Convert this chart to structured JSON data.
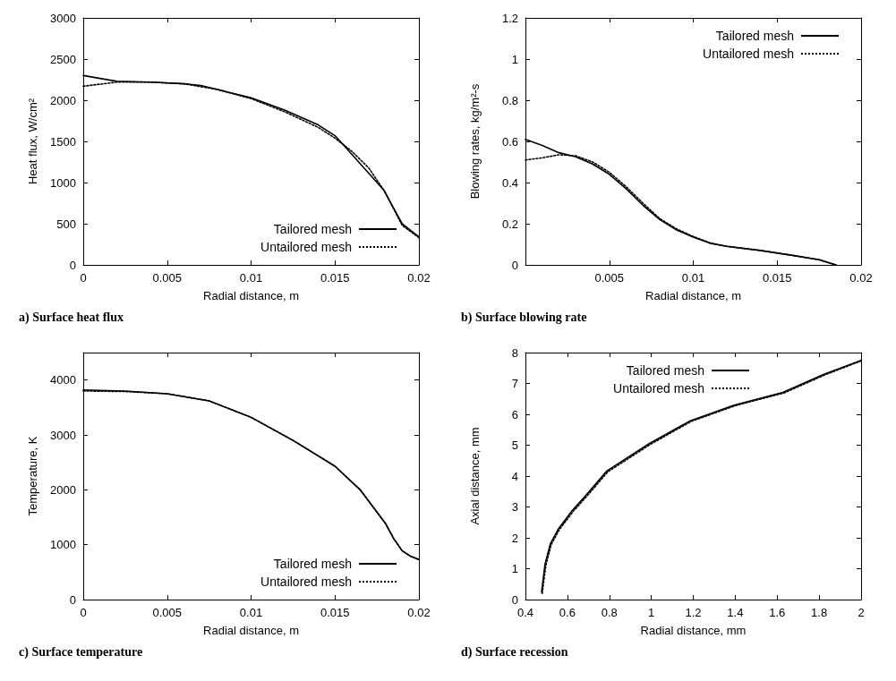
{
  "chart_data": [
    {
      "type": "line",
      "title": "a) Surface heat flux",
      "xlabel": "Radial distance, m",
      "ylabel": "Heat flux, W/cm²",
      "xlim": [
        0,
        0.02
      ],
      "xticks": [
        0,
        0.005,
        0.01,
        0.015,
        0.02
      ],
      "ylim": [
        0,
        3000
      ],
      "yticks": [
        0,
        500,
        1000,
        1500,
        2000,
        2500,
        3000
      ],
      "grid": false,
      "legend": "bottom right",
      "series": [
        {
          "name": "Tailored mesh",
          "color": "#000000",
          "line_style": "solid",
          "x": [
            0,
            0.002,
            0.004,
            0.006,
            0.007,
            0.008,
            0.01,
            0.012,
            0.014,
            0.015,
            0.0161,
            0.0179,
            0.019,
            0.02
          ],
          "values": [
            2300,
            2230,
            2220,
            2200,
            2180,
            2130,
            2030,
            1880,
            1700,
            1570,
            1320,
            910,
            500,
            340
          ]
        },
        {
          "name": "Untailored mesh",
          "color": "#000000",
          "line_style": "dotted",
          "x": [
            0,
            0.002,
            0.004,
            0.006,
            0.008,
            0.01,
            0.012,
            0.014,
            0.015,
            0.016,
            0.017,
            0.018,
            0.019,
            0.02
          ],
          "values": [
            2170,
            2220,
            2220,
            2200,
            2130,
            2020,
            1860,
            1670,
            1540,
            1380,
            1180,
            880,
            480,
            330
          ]
        }
      ]
    },
    {
      "type": "line",
      "title": "b) Surface blowing rate",
      "xlabel": "Radial distance, m",
      "ylabel": "Blowing rates, kg/m²-s",
      "xlim": [
        0,
        0.02
      ],
      "xticks": [
        0.005,
        0.01,
        0.015,
        0.02
      ],
      "ylim": [
        0,
        1.2
      ],
      "yticks": [
        0,
        0.2,
        0.4,
        0.6,
        0.8,
        1,
        1.2
      ],
      "grid": false,
      "legend": "top right",
      "series": [
        {
          "name": "Tailored mesh",
          "color": "#000000",
          "line_style": "solid",
          "x": [
            0,
            0.001,
            0.002,
            0.003,
            0.004,
            0.005,
            0.006,
            0.007,
            0.008,
            0.009,
            0.01,
            0.011,
            0.012,
            0.014,
            0.016,
            0.0175,
            0.0185
          ],
          "values": [
            0.61,
            0.58,
            0.545,
            0.525,
            0.49,
            0.44,
            0.37,
            0.29,
            0.22,
            0.17,
            0.135,
            0.105,
            0.09,
            0.07,
            0.045,
            0.025,
            0
          ]
        },
        {
          "name": "Untailored mesh",
          "color": "#000000",
          "line_style": "dotted",
          "x": [
            0,
            0.001,
            0.002,
            0.003,
            0.004,
            0.005,
            0.006,
            0.007,
            0.008,
            0.009,
            0.01,
            0.011,
            0.012,
            0.014,
            0.016,
            0.0175,
            0.0185
          ],
          "values": [
            0.51,
            0.52,
            0.535,
            0.53,
            0.5,
            0.45,
            0.38,
            0.3,
            0.225,
            0.175,
            0.138,
            0.107,
            0.09,
            0.07,
            0.045,
            0.025,
            0
          ]
        }
      ]
    },
    {
      "type": "line",
      "title": "c) Surface temperature",
      "xlabel": "Radial distance, m",
      "ylabel": "Temperature, K",
      "xlim": [
        0,
        0.02
      ],
      "xticks": [
        0,
        0.005,
        0.01,
        0.015,
        0.02
      ],
      "ylim": [
        0,
        4500
      ],
      "yticks": [
        0,
        1000,
        2000,
        3000,
        4000
      ],
      "grid": false,
      "legend": "bottom right",
      "series": [
        {
          "name": "Tailored mesh",
          "color": "#000000",
          "line_style": "solid",
          "x": [
            0,
            0.0025,
            0.005,
            0.0075,
            0.01,
            0.0125,
            0.015,
            0.0165,
            0.018,
            0.0185,
            0.019,
            0.0195,
            0.02
          ],
          "values": [
            3820,
            3800,
            3750,
            3620,
            3320,
            2900,
            2430,
            2000,
            1390,
            1110,
            890,
            790,
            730
          ]
        },
        {
          "name": "Untailored mesh",
          "color": "#000000",
          "line_style": "dotted",
          "x": [
            0,
            0.0025,
            0.005,
            0.0075,
            0.01,
            0.0125,
            0.015,
            0.0165,
            0.018,
            0.0185,
            0.019,
            0.0195,
            0.02
          ],
          "values": [
            3800,
            3790,
            3750,
            3620,
            3320,
            2900,
            2430,
            2000,
            1390,
            1110,
            890,
            790,
            730
          ]
        }
      ]
    },
    {
      "type": "line",
      "title": "d) Surface recession",
      "xlabel": "Radial distance, mm",
      "ylabel": "Axial distance, mm",
      "xlim": [
        0.4,
        2
      ],
      "xticks": [
        0.4,
        0.6,
        0.8,
        1,
        1.2,
        1.4,
        1.6,
        1.8,
        2
      ],
      "ylim": [
        0,
        8
      ],
      "yticks": [
        0,
        1,
        2,
        3,
        4,
        5,
        6,
        7,
        8
      ],
      "grid": false,
      "legend": "top left",
      "series": [
        {
          "name": "Tailored mesh",
          "color": "#000000",
          "line_style": "solid",
          "x": [
            0.477,
            0.493,
            0.519,
            0.558,
            0.624,
            0.689,
            0.789,
            0.99,
            1.186,
            1.395,
            1.627,
            1.823,
            2
          ],
          "values": [
            0.24,
            1.13,
            1.81,
            2.3,
            2.89,
            3.38,
            4.17,
            5.05,
            5.79,
            6.3,
            6.71,
            7.3,
            7.75
          ]
        },
        {
          "name": "Untailored mesh",
          "color": "#000000",
          "line_style": "dotted",
          "x": [
            0.48,
            0.497,
            0.523,
            0.562,
            0.628,
            0.693,
            0.793,
            0.994,
            1.19,
            1.4,
            1.632,
            1.828,
            2
          ],
          "values": [
            0.2,
            1.1,
            1.78,
            2.27,
            2.86,
            3.35,
            4.14,
            5.02,
            5.77,
            6.28,
            6.69,
            7.28,
            7.73
          ]
        }
      ]
    }
  ]
}
